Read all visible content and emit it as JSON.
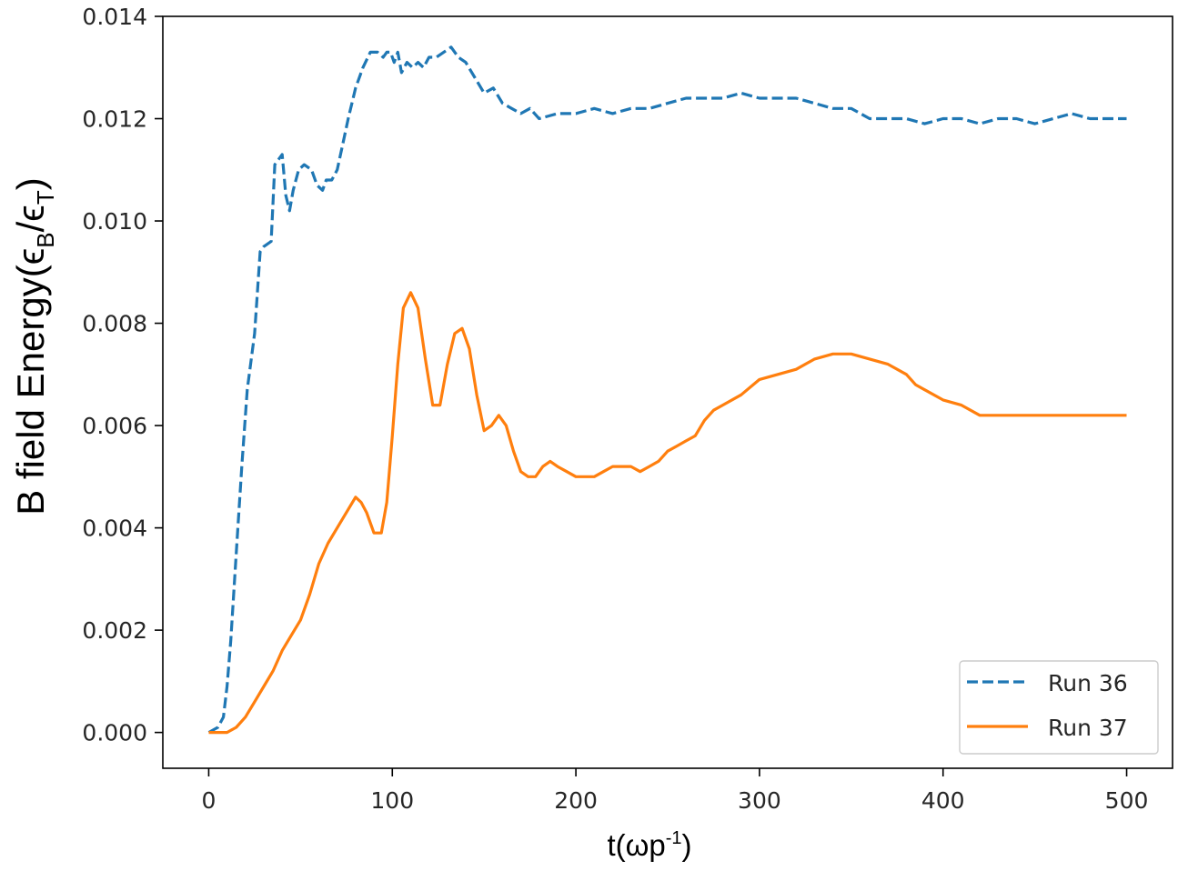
{
  "chart_data": {
    "type": "line",
    "xlabel": {
      "main": "t(ωp",
      "sup": "-1",
      "tail": ")"
    },
    "ylabel": {
      "part1": "B field Energy(ϵ",
      "sub1": "B",
      "mid": "/ϵ",
      "sub2": "T",
      "end": ")"
    },
    "xlim": [
      -25,
      525
    ],
    "ylim": [
      -0.0007,
      0.014
    ],
    "xticks": [
      0,
      100,
      200,
      300,
      400,
      500
    ],
    "xtick_labels": [
      "0",
      "100",
      "200",
      "300",
      "400",
      "500"
    ],
    "yticks": [
      0.0,
      0.002,
      0.004,
      0.006,
      0.008,
      0.01,
      0.012,
      0.014
    ],
    "ytick_labels": [
      "0.000",
      "0.002",
      "0.004",
      "0.006",
      "0.008",
      "0.010",
      "0.012",
      "0.014"
    ],
    "grid": false,
    "legend_position": "lower-right",
    "series": [
      {
        "name": "Run 36",
        "color": "#1f77b4",
        "style": "dashed",
        "x": [
          0,
          5,
          8,
          10,
          12,
          15,
          18,
          21,
          25,
          28,
          30,
          34,
          36,
          38,
          40,
          42,
          44,
          46,
          49,
          52,
          56,
          59,
          62,
          64,
          67,
          70,
          73,
          76,
          80,
          84,
          88,
          92,
          95,
          97,
          99,
          101,
          103,
          105,
          108,
          111,
          114,
          117,
          120,
          124,
          128,
          132,
          136,
          140,
          145,
          150,
          155,
          160,
          165,
          170,
          175,
          180,
          190,
          200,
          210,
          220,
          230,
          240,
          250,
          260,
          270,
          280,
          290,
          300,
          310,
          320,
          330,
          340,
          350,
          360,
          370,
          380,
          390,
          400,
          410,
          420,
          430,
          440,
          450,
          460,
          470,
          480,
          490,
          500
        ],
        "y": [
          0.0,
          0.0001,
          0.0003,
          0.0009,
          0.0018,
          0.0035,
          0.0052,
          0.0067,
          0.0078,
          0.0094,
          0.0095,
          0.0096,
          0.0111,
          0.0112,
          0.0113,
          0.0105,
          0.0102,
          0.0106,
          0.011,
          0.0111,
          0.011,
          0.0107,
          0.0106,
          0.0108,
          0.0108,
          0.011,
          0.0115,
          0.012,
          0.0126,
          0.013,
          0.0133,
          0.0133,
          0.0132,
          0.0133,
          0.0133,
          0.0131,
          0.0133,
          0.0129,
          0.0131,
          0.013,
          0.0131,
          0.013,
          0.0132,
          0.0132,
          0.0133,
          0.0134,
          0.0132,
          0.0131,
          0.0128,
          0.0125,
          0.0126,
          0.0123,
          0.0122,
          0.0121,
          0.0122,
          0.012,
          0.0121,
          0.0121,
          0.0122,
          0.0121,
          0.0122,
          0.0122,
          0.0123,
          0.0124,
          0.0124,
          0.0124,
          0.0125,
          0.0124,
          0.0124,
          0.0124,
          0.0123,
          0.0122,
          0.0122,
          0.012,
          0.012,
          0.012,
          0.0119,
          0.012,
          0.012,
          0.0119,
          0.012,
          0.012,
          0.0119,
          0.012,
          0.0121,
          0.012,
          0.012,
          0.012
        ]
      },
      {
        "name": "Run 37",
        "color": "#ff7f0e",
        "style": "solid",
        "x": [
          0,
          5,
          10,
          15,
          20,
          25,
          30,
          35,
          40,
          45,
          50,
          55,
          60,
          65,
          70,
          75,
          80,
          83,
          86,
          90,
          94,
          97,
          100,
          103,
          106,
          110,
          114,
          118,
          122,
          126,
          130,
          134,
          138,
          142,
          146,
          150,
          154,
          158,
          162,
          166,
          170,
          174,
          178,
          182,
          186,
          190,
          195,
          200,
          205,
          210,
          215,
          220,
          225,
          230,
          235,
          240,
          245,
          250,
          255,
          260,
          265,
          270,
          275,
          280,
          290,
          300,
          310,
          320,
          330,
          340,
          350,
          360,
          370,
          380,
          385,
          390,
          400,
          410,
          420,
          430,
          440,
          450,
          460,
          470,
          480,
          490,
          500
        ],
        "y": [
          0.0,
          0.0,
          0.0,
          0.0001,
          0.0003,
          0.0006,
          0.0009,
          0.0012,
          0.0016,
          0.0019,
          0.0022,
          0.0027,
          0.0033,
          0.0037,
          0.004,
          0.0043,
          0.0046,
          0.0045,
          0.0043,
          0.0039,
          0.0039,
          0.0045,
          0.0058,
          0.0072,
          0.0083,
          0.0086,
          0.0083,
          0.0073,
          0.0064,
          0.0064,
          0.0072,
          0.0078,
          0.0079,
          0.0075,
          0.0066,
          0.0059,
          0.006,
          0.0062,
          0.006,
          0.0055,
          0.0051,
          0.005,
          0.005,
          0.0052,
          0.0053,
          0.0052,
          0.0051,
          0.005,
          0.005,
          0.005,
          0.0051,
          0.0052,
          0.0052,
          0.0052,
          0.0051,
          0.0052,
          0.0053,
          0.0055,
          0.0056,
          0.0057,
          0.0058,
          0.0061,
          0.0063,
          0.0064,
          0.0066,
          0.0069,
          0.007,
          0.0071,
          0.0073,
          0.0074,
          0.0074,
          0.0073,
          0.0072,
          0.007,
          0.0068,
          0.0067,
          0.0065,
          0.0064,
          0.0062,
          0.0062,
          0.0062,
          0.0062,
          0.0062,
          0.0062,
          0.0062,
          0.0062,
          0.0062
        ]
      }
    ]
  }
}
